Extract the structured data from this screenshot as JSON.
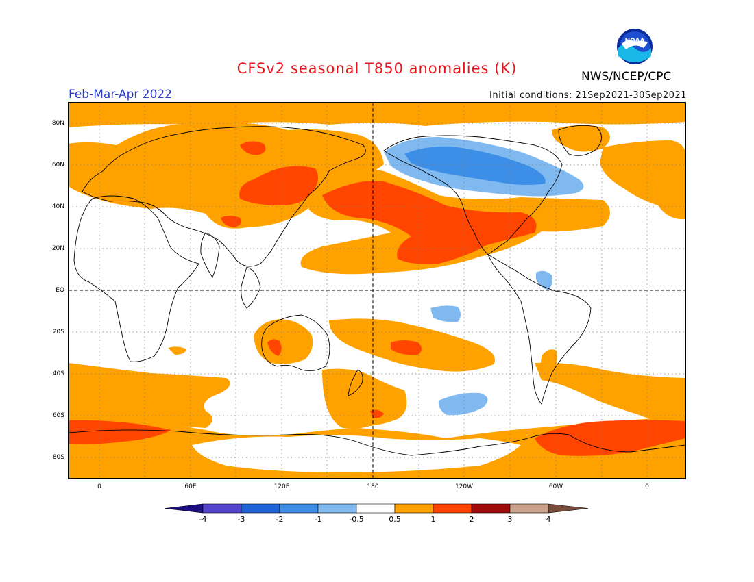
{
  "header": {
    "title": "CFSv2 seasonal T850 anomalies (K)",
    "period": "Feb-Mar-Apr 2022",
    "initial_conditions": "Initial conditions: 21Sep2021-30Sep2021",
    "agency": "NWS/NCEP/CPC",
    "logo_text": "NOAA"
  },
  "axes": {
    "lat_labels": [
      "80N",
      "60N",
      "40N",
      "20N",
      "EQ",
      "20S",
      "40S",
      "60S",
      "80S"
    ],
    "lon_labels": [
      "0",
      "60E",
      "120E",
      "180",
      "120W",
      "60W",
      "0"
    ]
  },
  "colorbar": {
    "labels": [
      "-4",
      "-3",
      "-2",
      "-1",
      "-0.5",
      "0.5",
      "1",
      "2",
      "3",
      "4"
    ],
    "colors": [
      "#1c0d80",
      "#5443cc",
      "#1f64d6",
      "#3d8ee6",
      "#7fb9f0",
      "#ffffff",
      "#ffa200",
      "#ff4500",
      "#a00a0a",
      "#c9a08a",
      "#7a4c3c"
    ]
  },
  "colors": {
    "warm_1": "#ffa200",
    "warm_2": "#ff4500",
    "cold_1": "#7fb9f0",
    "cold_2": "#3d8ee6",
    "title": "#e8141c",
    "period": "#2a3cc4"
  }
}
